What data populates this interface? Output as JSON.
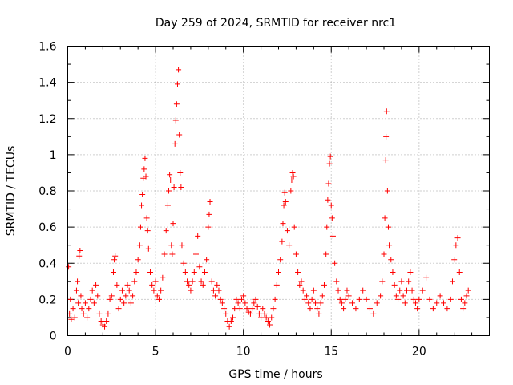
{
  "chart_data": {
    "type": "scatter",
    "title": "Day 259 of 2024, SRMTID for receiver nrc1",
    "xlabel": "GPS time / hours",
    "ylabel": "SRMTID / TECUs",
    "xlim": [
      0,
      24
    ],
    "ylim": [
      0,
      1.6
    ],
    "x_ticks": [
      0,
      5,
      10,
      15,
      20
    ],
    "x_tick_labels": [
      "0",
      "5",
      "10",
      "15",
      "20"
    ],
    "y_ticks": [
      0,
      0.2,
      0.4,
      0.6,
      0.8,
      1.0,
      1.2,
      1.4,
      1.6
    ],
    "y_tick_labels": [
      "0",
      "0.2",
      "0.4",
      "0.6",
      "0.8",
      "1",
      "1.2",
      "1.4",
      "1.6"
    ],
    "grid": true,
    "marker": "plus",
    "color": "#ff0000",
    "series": [
      {
        "name": "SRMTID",
        "points": [
          [
            0.05,
            0.38
          ],
          [
            0.1,
            0.12
          ],
          [
            0.15,
            0.2
          ],
          [
            0.2,
            0.09
          ],
          [
            0.3,
            0.15
          ],
          [
            0.4,
            0.1
          ],
          [
            0.5,
            0.25
          ],
          [
            0.55,
            0.3
          ],
          [
            0.6,
            0.18
          ],
          [
            0.65,
            0.44
          ],
          [
            0.7,
            0.47
          ],
          [
            0.75,
            0.22
          ],
          [
            0.8,
            0.15
          ],
          [
            0.9,
            0.12
          ],
          [
            1.0,
            0.18
          ],
          [
            1.1,
            0.1
          ],
          [
            1.2,
            0.15
          ],
          [
            1.3,
            0.2
          ],
          [
            1.4,
            0.25
          ],
          [
            1.5,
            0.18
          ],
          [
            1.6,
            0.28
          ],
          [
            1.7,
            0.22
          ],
          [
            1.8,
            0.12
          ],
          [
            1.9,
            0.08
          ],
          [
            2.0,
            0.06
          ],
          [
            2.1,
            0.05
          ],
          [
            2.2,
            0.08
          ],
          [
            2.3,
            0.12
          ],
          [
            2.4,
            0.2
          ],
          [
            2.5,
            0.22
          ],
          [
            2.6,
            0.35
          ],
          [
            2.65,
            0.42
          ],
          [
            2.7,
            0.44
          ],
          [
            2.8,
            0.28
          ],
          [
            2.9,
            0.15
          ],
          [
            3.0,
            0.2
          ],
          [
            3.1,
            0.25
          ],
          [
            3.2,
            0.18
          ],
          [
            3.3,
            0.22
          ],
          [
            3.4,
            0.28
          ],
          [
            3.5,
            0.25
          ],
          [
            3.6,
            0.18
          ],
          [
            3.7,
            0.22
          ],
          [
            3.8,
            0.3
          ],
          [
            3.9,
            0.35
          ],
          [
            4.0,
            0.42
          ],
          [
            4.1,
            0.5
          ],
          [
            4.15,
            0.6
          ],
          [
            4.2,
            0.72
          ],
          [
            4.25,
            0.78
          ],
          [
            4.3,
            0.87
          ],
          [
            4.35,
            0.92
          ],
          [
            4.4,
            0.98
          ],
          [
            4.45,
            0.88
          ],
          [
            4.5,
            0.65
          ],
          [
            4.55,
            0.58
          ],
          [
            4.6,
            0.48
          ],
          [
            4.7,
            0.35
          ],
          [
            4.8,
            0.28
          ],
          [
            4.9,
            0.25
          ],
          [
            5.0,
            0.3
          ],
          [
            5.1,
            0.22
          ],
          [
            5.2,
            0.2
          ],
          [
            5.3,
            0.25
          ],
          [
            5.4,
            0.32
          ],
          [
            5.5,
            0.45
          ],
          [
            5.6,
            0.58
          ],
          [
            5.7,
            0.72
          ],
          [
            5.75,
            0.8
          ],
          [
            5.8,
            0.89
          ],
          [
            5.85,
            0.86
          ],
          [
            5.9,
            0.5
          ],
          [
            5.95,
            0.45
          ],
          [
            6.0,
            0.62
          ],
          [
            6.05,
            0.82
          ],
          [
            6.1,
            1.06
          ],
          [
            6.15,
            1.19
          ],
          [
            6.2,
            1.28
          ],
          [
            6.25,
            1.39
          ],
          [
            6.3,
            1.47
          ],
          [
            6.35,
            1.11
          ],
          [
            6.4,
            0.9
          ],
          [
            6.45,
            0.82
          ],
          [
            6.5,
            0.5
          ],
          [
            6.6,
            0.4
          ],
          [
            6.7,
            0.35
          ],
          [
            6.8,
            0.3
          ],
          [
            6.9,
            0.28
          ],
          [
            7.0,
            0.25
          ],
          [
            7.1,
            0.3
          ],
          [
            7.2,
            0.35
          ],
          [
            7.3,
            0.45
          ],
          [
            7.4,
            0.55
          ],
          [
            7.5,
            0.38
          ],
          [
            7.6,
            0.3
          ],
          [
            7.7,
            0.28
          ],
          [
            7.8,
            0.35
          ],
          [
            7.9,
            0.42
          ],
          [
            8.0,
            0.6
          ],
          [
            8.05,
            0.67
          ],
          [
            8.1,
            0.74
          ],
          [
            8.2,
            0.3
          ],
          [
            8.3,
            0.25
          ],
          [
            8.4,
            0.22
          ],
          [
            8.5,
            0.28
          ],
          [
            8.6,
            0.25
          ],
          [
            8.7,
            0.2
          ],
          [
            8.8,
            0.18
          ],
          [
            8.9,
            0.15
          ],
          [
            9.0,
            0.12
          ],
          [
            9.1,
            0.08
          ],
          [
            9.2,
            0.05
          ],
          [
            9.3,
            0.08
          ],
          [
            9.4,
            0.1
          ],
          [
            9.5,
            0.15
          ],
          [
            9.6,
            0.2
          ],
          [
            9.7,
            0.18
          ],
          [
            9.8,
            0.15
          ],
          [
            9.9,
            0.2
          ],
          [
            10.0,
            0.22
          ],
          [
            10.1,
            0.18
          ],
          [
            10.2,
            0.15
          ],
          [
            10.3,
            0.13
          ],
          [
            10.4,
            0.12
          ],
          [
            10.5,
            0.15
          ],
          [
            10.6,
            0.18
          ],
          [
            10.7,
            0.2
          ],
          [
            10.8,
            0.16
          ],
          [
            10.9,
            0.12
          ],
          [
            11.0,
            0.1
          ],
          [
            11.1,
            0.15
          ],
          [
            11.2,
            0.12
          ],
          [
            11.3,
            0.1
          ],
          [
            11.4,
            0.08
          ],
          [
            11.5,
            0.06
          ],
          [
            11.6,
            0.1
          ],
          [
            11.7,
            0.15
          ],
          [
            11.8,
            0.2
          ],
          [
            11.9,
            0.28
          ],
          [
            12.0,
            0.35
          ],
          [
            12.1,
            0.42
          ],
          [
            12.2,
            0.52
          ],
          [
            12.25,
            0.62
          ],
          [
            12.3,
            0.72
          ],
          [
            12.35,
            0.79
          ],
          [
            12.4,
            0.74
          ],
          [
            12.5,
            0.58
          ],
          [
            12.6,
            0.5
          ],
          [
            12.7,
            0.8
          ],
          [
            12.75,
            0.86
          ],
          [
            12.8,
            0.9
          ],
          [
            12.85,
            0.88
          ],
          [
            12.9,
            0.6
          ],
          [
            13.0,
            0.45
          ],
          [
            13.1,
            0.35
          ],
          [
            13.2,
            0.28
          ],
          [
            13.3,
            0.3
          ],
          [
            13.4,
            0.25
          ],
          [
            13.5,
            0.2
          ],
          [
            13.6,
            0.22
          ],
          [
            13.7,
            0.18
          ],
          [
            13.8,
            0.15
          ],
          [
            13.9,
            0.2
          ],
          [
            14.0,
            0.25
          ],
          [
            14.1,
            0.18
          ],
          [
            14.2,
            0.15
          ],
          [
            14.3,
            0.12
          ],
          [
            14.4,
            0.18
          ],
          [
            14.5,
            0.22
          ],
          [
            14.6,
            0.28
          ],
          [
            14.7,
            0.45
          ],
          [
            14.75,
            0.6
          ],
          [
            14.8,
            0.75
          ],
          [
            14.85,
            0.84
          ],
          [
            14.9,
            0.95
          ],
          [
            14.95,
            0.99
          ],
          [
            15.0,
            0.72
          ],
          [
            15.05,
            0.65
          ],
          [
            15.1,
            0.55
          ],
          [
            15.2,
            0.4
          ],
          [
            15.3,
            0.3
          ],
          [
            15.4,
            0.25
          ],
          [
            15.5,
            0.2
          ],
          [
            15.6,
            0.18
          ],
          [
            15.7,
            0.15
          ],
          [
            15.8,
            0.2
          ],
          [
            15.9,
            0.25
          ],
          [
            16.0,
            0.22
          ],
          [
            16.2,
            0.18
          ],
          [
            16.4,
            0.15
          ],
          [
            16.6,
            0.2
          ],
          [
            16.8,
            0.25
          ],
          [
            17.0,
            0.2
          ],
          [
            17.2,
            0.15
          ],
          [
            17.4,
            0.12
          ],
          [
            17.6,
            0.18
          ],
          [
            17.8,
            0.22
          ],
          [
            17.9,
            0.3
          ],
          [
            18.0,
            0.45
          ],
          [
            18.05,
            0.65
          ],
          [
            18.1,
            0.97
          ],
          [
            18.12,
            1.1
          ],
          [
            18.15,
            1.24
          ],
          [
            18.2,
            0.8
          ],
          [
            18.25,
            0.6
          ],
          [
            18.3,
            0.5
          ],
          [
            18.4,
            0.42
          ],
          [
            18.5,
            0.35
          ],
          [
            18.6,
            0.28
          ],
          [
            18.7,
            0.22
          ],
          [
            18.8,
            0.2
          ],
          [
            18.9,
            0.25
          ],
          [
            19.0,
            0.3
          ],
          [
            19.1,
            0.22
          ],
          [
            19.2,
            0.18
          ],
          [
            19.3,
            0.25
          ],
          [
            19.4,
            0.3
          ],
          [
            19.5,
            0.35
          ],
          [
            19.6,
            0.25
          ],
          [
            19.7,
            0.2
          ],
          [
            19.8,
            0.18
          ],
          [
            19.9,
            0.15
          ],
          [
            20.0,
            0.2
          ],
          [
            20.2,
            0.25
          ],
          [
            20.4,
            0.32
          ],
          [
            20.6,
            0.2
          ],
          [
            20.8,
            0.15
          ],
          [
            21.0,
            0.18
          ],
          [
            21.2,
            0.22
          ],
          [
            21.4,
            0.18
          ],
          [
            21.6,
            0.15
          ],
          [
            21.8,
            0.2
          ],
          [
            21.9,
            0.3
          ],
          [
            22.0,
            0.42
          ],
          [
            22.1,
            0.5
          ],
          [
            22.2,
            0.54
          ],
          [
            22.3,
            0.35
          ],
          [
            22.4,
            0.2
          ],
          [
            22.5,
            0.15
          ],
          [
            22.6,
            0.18
          ],
          [
            22.7,
            0.22
          ],
          [
            22.8,
            0.25
          ]
        ]
      }
    ]
  }
}
